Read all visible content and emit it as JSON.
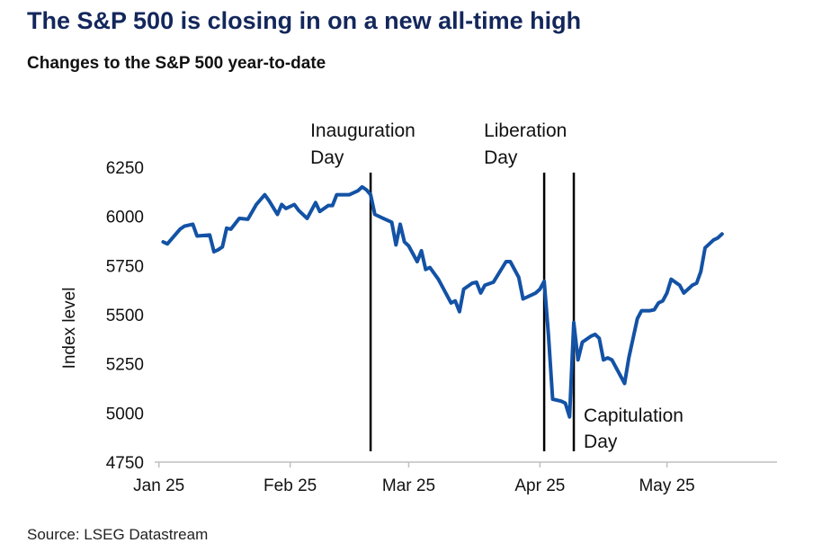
{
  "header": {
    "title": "The S&P 500 is closing in on a new all-time high",
    "subtitle": "Changes to the S&P 500 year-to-date"
  },
  "footer": {
    "source": "Source: LSEG Datastream"
  },
  "colors": {
    "title": "#13275b",
    "series": "#1352a5",
    "event_line": "#000000"
  },
  "chart_data": {
    "type": "line",
    "title": "The S&P 500 is closing in on a new all-time high",
    "subtitle": "Changes to the S&P 500 year-to-date",
    "ylabel": "Index level",
    "xlabel": "",
    "ylim": [
      4750,
      6250
    ],
    "yticks": [
      4750,
      5000,
      5250,
      5500,
      5750,
      6000,
      6250
    ],
    "xticks": [
      {
        "label": "Jan 25",
        "date": "2025-01-01"
      },
      {
        "label": "Feb 25",
        "date": "2025-02-01"
      },
      {
        "label": "Mar 25",
        "date": "2025-03-01"
      },
      {
        "label": "Apr 25",
        "date": "2025-04-01"
      },
      {
        "label": "May 25",
        "date": "2025-05-01"
      }
    ],
    "xlim": [
      "2024-12-31",
      "2025-05-27"
    ],
    "grid": false,
    "legend": "none",
    "events": [
      {
        "label_lines": [
          "Inauguration",
          "Day"
        ],
        "date": "2025-02-20",
        "label_side": "above"
      },
      {
        "label_lines": [
          "Liberation",
          "Day"
        ],
        "date": "2025-04-02",
        "label_side": "above"
      },
      {
        "label_lines": [
          "Capitulation",
          "Day"
        ],
        "date": "2025-04-09",
        "label_side": "below-right"
      }
    ],
    "series": [
      {
        "points": [
          [
            "2025-01-02",
            5870
          ],
          [
            "2025-01-03",
            5860
          ],
          [
            "2025-01-06",
            5935
          ],
          [
            "2025-01-07",
            5950
          ],
          [
            "2025-01-09",
            5960
          ],
          [
            "2025-01-10",
            5900
          ],
          [
            "2025-01-13",
            5905
          ],
          [
            "2025-01-14",
            5820
          ],
          [
            "2025-01-15",
            5830
          ],
          [
            "2025-01-16",
            5845
          ],
          [
            "2025-01-17",
            5940
          ],
          [
            "2025-01-18",
            5935
          ],
          [
            "2025-01-20",
            5990
          ],
          [
            "2025-01-22",
            5985
          ],
          [
            "2025-01-24",
            6060
          ],
          [
            "2025-01-26",
            6110
          ],
          [
            "2025-01-27",
            6080
          ],
          [
            "2025-01-29",
            6010
          ],
          [
            "2025-01-30",
            6060
          ],
          [
            "2025-01-31",
            6040
          ],
          [
            "2025-02-02",
            6060
          ],
          [
            "2025-02-03",
            6030
          ],
          [
            "2025-02-05",
            5990
          ],
          [
            "2025-02-07",
            6070
          ],
          [
            "2025-02-08",
            6025
          ],
          [
            "2025-02-10",
            6055
          ],
          [
            "2025-02-11",
            6055
          ],
          [
            "2025-02-12",
            6110
          ],
          [
            "2025-02-15",
            6110
          ],
          [
            "2025-02-17",
            6130
          ],
          [
            "2025-02-18",
            6150
          ],
          [
            "2025-02-19",
            6135
          ],
          [
            "2025-02-20",
            6110
          ],
          [
            "2025-02-21",
            6010
          ],
          [
            "2025-02-23",
            5990
          ],
          [
            "2025-02-25",
            5970
          ],
          [
            "2025-02-26",
            5855
          ],
          [
            "2025-02-27",
            5960
          ],
          [
            "2025-02-28",
            5870
          ],
          [
            "2025-03-01",
            5850
          ],
          [
            "2025-03-03",
            5770
          ],
          [
            "2025-03-04",
            5825
          ],
          [
            "2025-03-05",
            5730
          ],
          [
            "2025-03-06",
            5740
          ],
          [
            "2025-03-08",
            5680
          ],
          [
            "2025-03-10",
            5600
          ],
          [
            "2025-03-11",
            5560
          ],
          [
            "2025-03-12",
            5570
          ],
          [
            "2025-03-13",
            5515
          ],
          [
            "2025-03-14",
            5630
          ],
          [
            "2025-03-16",
            5660
          ],
          [
            "2025-03-17",
            5665
          ],
          [
            "2025-03-18",
            5610
          ],
          [
            "2025-03-19",
            5650
          ],
          [
            "2025-03-21",
            5665
          ],
          [
            "2025-03-24",
            5770
          ],
          [
            "2025-03-25",
            5770
          ],
          [
            "2025-03-27",
            5690
          ],
          [
            "2025-03-28",
            5580
          ],
          [
            "2025-03-31",
            5610
          ],
          [
            "2025-04-01",
            5630
          ],
          [
            "2025-04-02",
            5670
          ],
          [
            "2025-04-03",
            5400
          ],
          [
            "2025-04-04",
            5070
          ],
          [
            "2025-04-06",
            5060
          ],
          [
            "2025-04-07",
            5050
          ],
          [
            "2025-04-08",
            4980
          ],
          [
            "2025-04-09",
            5460
          ],
          [
            "2025-04-10",
            5270
          ],
          [
            "2025-04-11",
            5360
          ],
          [
            "2025-04-13",
            5390
          ],
          [
            "2025-04-14",
            5400
          ],
          [
            "2025-04-15",
            5380
          ],
          [
            "2025-04-16",
            5270
          ],
          [
            "2025-04-17",
            5280
          ],
          [
            "2025-04-18",
            5270
          ],
          [
            "2025-04-21",
            5150
          ],
          [
            "2025-04-22",
            5280
          ],
          [
            "2025-04-24",
            5480
          ],
          [
            "2025-04-25",
            5520
          ],
          [
            "2025-04-27",
            5520
          ],
          [
            "2025-04-28",
            5525
          ],
          [
            "2025-04-29",
            5560
          ],
          [
            "2025-04-30",
            5570
          ],
          [
            "2025-05-01",
            5610
          ],
          [
            "2025-05-02",
            5680
          ],
          [
            "2025-05-04",
            5650
          ],
          [
            "2025-05-05",
            5610
          ],
          [
            "2025-05-06",
            5630
          ],
          [
            "2025-05-07",
            5650
          ],
          [
            "2025-05-08",
            5660
          ],
          [
            "2025-05-09",
            5720
          ],
          [
            "2025-05-10",
            5840
          ],
          [
            "2025-05-12",
            5880
          ],
          [
            "2025-05-13",
            5890
          ],
          [
            "2025-05-14",
            5910
          ]
        ]
      }
    ]
  }
}
